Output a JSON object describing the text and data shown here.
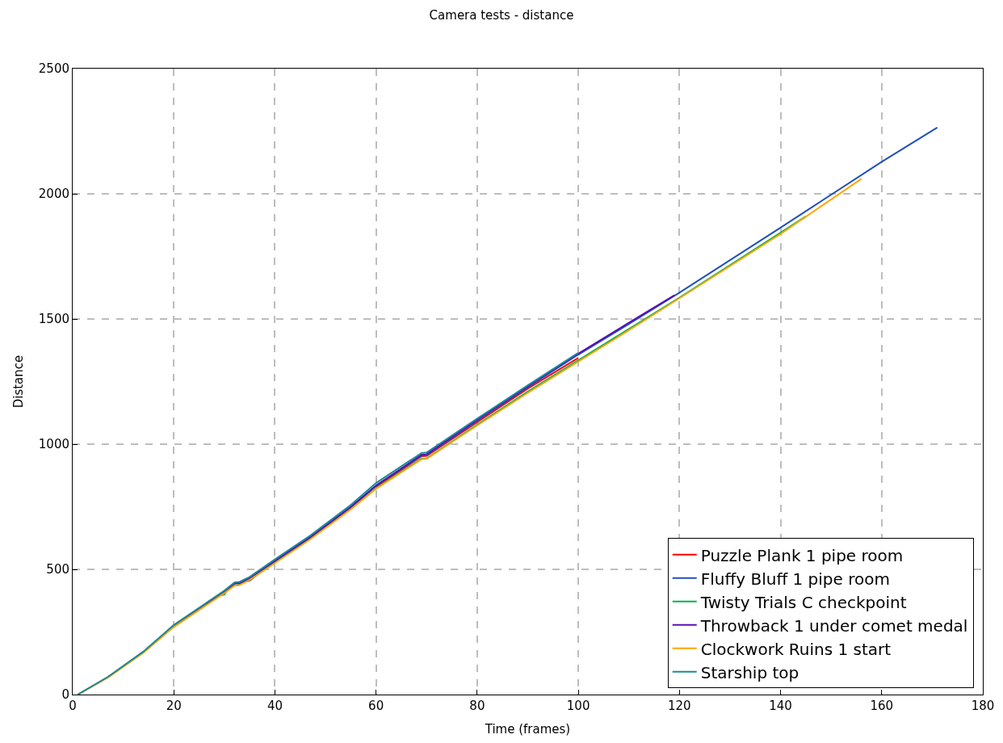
{
  "chart_data": {
    "type": "line",
    "title": "Camera tests - distance",
    "xlabel": "Time (frames)",
    "ylabel": "Distance",
    "xlim": [
      0,
      180
    ],
    "xticks": [
      0,
      20,
      40,
      60,
      80,
      100,
      120,
      140,
      160,
      180
    ],
    "ylim": [
      0,
      2500
    ],
    "yticks": [
      0,
      500,
      1000,
      1500,
      2000,
      2500
    ],
    "grid": true,
    "legend": "bottom right",
    "line_style": "solid",
    "marker": "none",
    "series": [
      {
        "name": "Puzzle Plank 1 pipe room",
        "color": "#ff0000",
        "x": [
          60,
          69,
          70,
          80,
          90,
          100
        ],
        "values": [
          830,
          952,
          953,
          1088,
          1222,
          1345
        ]
      },
      {
        "name": "Fluffy Bluff 1 pipe room",
        "color": "#1f4fbf",
        "x": [
          1,
          7,
          14,
          20,
          30,
          32,
          33,
          35,
          40,
          47,
          55,
          60,
          69,
          70,
          80,
          90,
          100,
          110,
          120,
          140,
          160,
          171
        ],
        "values": [
          0,
          70,
          170,
          275,
          412,
          445,
          447,
          455,
          535,
          630,
          750,
          835,
          955,
          957,
          1095,
          1228,
          1358,
          1480,
          1605,
          1865,
          2128,
          2265
        ]
      },
      {
        "name": "Twisty Trials C checkpoint",
        "color": "#00b050",
        "x": [
          20,
          29,
          30,
          31,
          33,
          35,
          40,
          47,
          55,
          60,
          69,
          70,
          80,
          90,
          100,
          110,
          120,
          140,
          145
        ],
        "values": [
          270,
          395,
          400,
          430,
          440,
          462,
          530,
          625,
          742,
          825,
          942,
          943,
          1078,
          1210,
          1335,
          1460,
          1585,
          1845,
          1910
        ]
      },
      {
        "name": "Throwback 1 under comet medal",
        "color": "#5a0fb4",
        "x": [
          20,
          30,
          32,
          33,
          35,
          40,
          47,
          55,
          60,
          69,
          70,
          80,
          90,
          100,
          110,
          119
        ],
        "values": [
          274,
          410,
          443,
          445,
          465,
          533,
          628,
          748,
          834,
          958,
          960,
          1098,
          1232,
          1362,
          1485,
          1595
        ]
      },
      {
        "name": "Clockwork Ruins 1 start",
        "color": "#ffa500",
        "x": [
          1,
          7,
          14,
          20,
          30,
          32,
          33,
          35,
          40,
          47,
          55,
          60,
          69,
          70,
          80,
          90,
          100,
          110,
          120,
          140,
          156
        ],
        "values": [
          0,
          68,
          167,
          270,
          405,
          435,
          437,
          458,
          525,
          620,
          740,
          822,
          940,
          942,
          1075,
          1205,
          1330,
          1455,
          1583,
          1840,
          2060
        ]
      },
      {
        "name": "Starship top",
        "color": "#1a8a9a",
        "x": [
          1,
          7,
          14,
          20,
          30,
          32,
          33,
          35,
          40,
          47,
          55,
          60,
          69,
          70,
          80,
          90,
          100
        ],
        "values": [
          0,
          71,
          172,
          278,
          415,
          448,
          450,
          470,
          540,
          635,
          757,
          845,
          965,
          967,
          1102,
          1235,
          1365
        ]
      }
    ]
  }
}
